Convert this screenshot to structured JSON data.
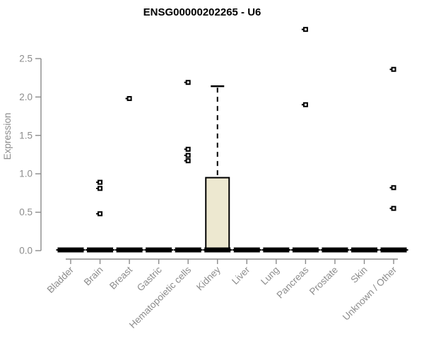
{
  "chart_data": {
    "type": "boxplot",
    "title": "ENSG00000202265 - U6",
    "xlabel": "",
    "ylabel": "Expression",
    "ylim": [
      0,
      2.5
    ],
    "yticks": [
      "0.0",
      "0.5",
      "1.0",
      "1.5",
      "2.0",
      "2.5"
    ],
    "grid": false,
    "legend": false,
    "categories": [
      "Bladder",
      "Brain",
      "Breast",
      "Gastric",
      "Hematopoietic cells",
      "Kidney",
      "Liver",
      "Lung",
      "Pancreas",
      "Prostate",
      "Skin",
      "Unknown / Other"
    ],
    "boxes": [
      {
        "category": "Bladder",
        "q1": 0,
        "median": 0,
        "q3": 0,
        "whisker_low": 0,
        "whisker_high": 0,
        "outliers": []
      },
      {
        "category": "Brain",
        "q1": 0,
        "median": 0,
        "q3": 0,
        "whisker_low": 0,
        "whisker_high": 0,
        "outliers": [
          0.89,
          0.81,
          0.48
        ]
      },
      {
        "category": "Breast",
        "q1": 0,
        "median": 0,
        "q3": 0,
        "whisker_low": 0,
        "whisker_high": 0,
        "outliers": [
          1.98
        ]
      },
      {
        "category": "Gastric",
        "q1": 0,
        "median": 0,
        "q3": 0,
        "whisker_low": 0,
        "whisker_high": 0,
        "outliers": []
      },
      {
        "category": "Hematopoietic cells",
        "q1": 0,
        "median": 0,
        "q3": 0,
        "whisker_low": 0,
        "whisker_high": 0,
        "outliers": [
          2.19,
          1.32,
          1.24,
          1.17
        ]
      },
      {
        "category": "Kidney",
        "q1": 0,
        "median": 0,
        "q3": 0.95,
        "whisker_low": 0,
        "whisker_high": 2.14,
        "outliers": []
      },
      {
        "category": "Liver",
        "q1": 0,
        "median": 0,
        "q3": 0,
        "whisker_low": 0,
        "whisker_high": 0,
        "outliers": []
      },
      {
        "category": "Lung",
        "q1": 0,
        "median": 0,
        "q3": 0,
        "whisker_low": 0,
        "whisker_high": 0,
        "outliers": []
      },
      {
        "category": "Pancreas",
        "q1": 0,
        "median": 0,
        "q3": 0,
        "whisker_low": 0,
        "whisker_high": 0,
        "outliers": [
          2.88,
          1.9
        ]
      },
      {
        "category": "Prostate",
        "q1": 0,
        "median": 0,
        "q3": 0,
        "whisker_low": 0,
        "whisker_high": 0,
        "outliers": []
      },
      {
        "category": "Skin",
        "q1": 0,
        "median": 0,
        "q3": 0,
        "whisker_low": 0,
        "whisker_high": 0,
        "outliers": []
      },
      {
        "category": "Unknown / Other",
        "q1": 0,
        "median": 0,
        "q3": 0,
        "whisker_low": 0,
        "whisker_high": 0,
        "outliers": [
          2.36,
          0.82,
          0.55
        ]
      }
    ],
    "colors": {
      "box_fill": "#ede8d0",
      "box_stroke": "#000000",
      "marker": "#000000",
      "axis": "#8a8a8a",
      "tick_text": "#8c8c8c",
      "title_text": "#000000",
      "background": "#ffffff"
    }
  }
}
